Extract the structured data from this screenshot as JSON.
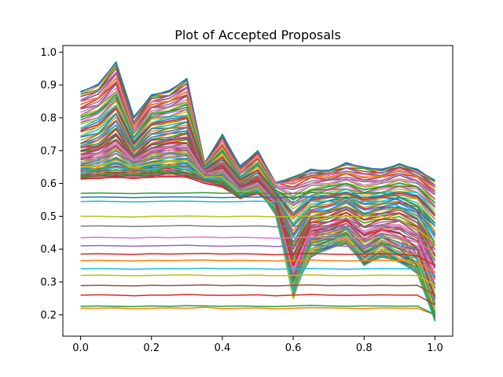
{
  "chart_data": {
    "type": "line",
    "title": "Plot of Accepted Proposals",
    "xlabel": "",
    "ylabel": "",
    "xlim": [
      -0.05,
      1.05
    ],
    "ylim": [
      0.135,
      1.02
    ],
    "x_ticks": [
      "0.0",
      "0.2",
      "0.4",
      "0.6",
      "0.8",
      "1.0"
    ],
    "y_ticks": [
      "0.2",
      "0.3",
      "0.4",
      "0.5",
      "0.6",
      "0.7",
      "0.8",
      "0.9",
      "1.0"
    ],
    "grid": false,
    "legend": "none",
    "x_sample": [
      0.0,
      0.05,
      0.1,
      0.15,
      0.2,
      0.25,
      0.3,
      0.35,
      0.4,
      0.45,
      0.5,
      0.55,
      0.6,
      0.65,
      0.7,
      0.75,
      0.8,
      0.85,
      0.9,
      0.95,
      1.0
    ],
    "series": [
      {
        "values": [
          0.22,
          0.22,
          0.221,
          0.218,
          0.22,
          0.221,
          0.22,
          0.223,
          0.219,
          0.22,
          0.221,
          0.218,
          0.22,
          0.222,
          0.221,
          0.22,
          0.219,
          0.221,
          0.22,
          0.22,
          0.2
        ],
        "color": "#ff7f0e"
      },
      {
        "values": [
          0.226,
          0.227,
          0.226,
          0.225,
          0.227,
          0.226,
          0.228,
          0.227,
          0.226,
          0.227,
          0.226,
          0.225,
          0.227,
          0.229,
          0.227,
          0.226,
          0.227,
          0.227,
          0.226,
          0.227,
          0.2
        ],
        "color": "#2ca02c"
      },
      {
        "values": [
          0.26,
          0.261,
          0.26,
          0.258,
          0.26,
          0.26,
          0.262,
          0.26,
          0.259,
          0.26,
          0.261,
          0.258,
          0.26,
          0.262,
          0.26,
          0.259,
          0.26,
          0.261,
          0.26,
          0.26,
          0.23
        ],
        "color": "#d62728"
      },
      {
        "values": [
          0.289,
          0.29,
          0.289,
          0.288,
          0.29,
          0.289,
          0.29,
          0.291,
          0.289,
          0.29,
          0.289,
          0.288,
          0.29,
          0.291,
          0.289,
          0.29,
          0.289,
          0.29,
          0.289,
          0.29,
          0.26
        ],
        "color": "#8c564b"
      },
      {
        "values": [
          0.32,
          0.321,
          0.32,
          0.319,
          0.32,
          0.321,
          0.322,
          0.32,
          0.319,
          0.32,
          0.321,
          0.319,
          0.32,
          0.322,
          0.32,
          0.319,
          0.32,
          0.321,
          0.32,
          0.32,
          0.29
        ],
        "color": "#bcbd22"
      },
      {
        "values": [
          0.34,
          0.341,
          0.34,
          0.339,
          0.34,
          0.341,
          0.34,
          0.342,
          0.34,
          0.341,
          0.34,
          0.339,
          0.34,
          0.341,
          0.34,
          0.339,
          0.34,
          0.341,
          0.34,
          0.34,
          0.32
        ],
        "color": "#17becf"
      },
      {
        "values": [
          0.365,
          0.366,
          0.365,
          0.364,
          0.366,
          0.365,
          0.366,
          0.367,
          0.365,
          0.366,
          0.365,
          0.364,
          0.366,
          0.367,
          0.365,
          0.364,
          0.365,
          0.366,
          0.365,
          0.36,
          0.33
        ],
        "color": "#ff7f0e"
      },
      {
        "values": [
          0.385,
          0.386,
          0.385,
          0.384,
          0.386,
          0.385,
          0.386,
          0.387,
          0.385,
          0.386,
          0.385,
          0.383,
          0.385,
          0.387,
          0.385,
          0.384,
          0.385,
          0.386,
          0.385,
          0.38,
          0.35
        ],
        "color": "#d62728"
      },
      {
        "values": [
          0.41,
          0.411,
          0.41,
          0.409,
          0.41,
          0.411,
          0.412,
          0.41,
          0.409,
          0.41,
          0.411,
          0.408,
          0.41,
          0.412,
          0.41,
          0.409,
          0.41,
          0.411,
          0.41,
          0.4,
          0.37
        ],
        "color": "#9467bd"
      },
      {
        "values": [
          0.435,
          0.436,
          0.435,
          0.434,
          0.436,
          0.435,
          0.436,
          0.437,
          0.435,
          0.436,
          0.435,
          0.433,
          0.435,
          0.437,
          0.435,
          0.434,
          0.435,
          0.436,
          0.435,
          0.42,
          0.39
        ],
        "color": "#e377c2"
      },
      {
        "values": [
          0.47,
          0.471,
          0.47,
          0.469,
          0.47,
          0.471,
          0.472,
          0.47,
          0.469,
          0.47,
          0.471,
          0.468,
          0.47,
          0.472,
          0.47,
          0.469,
          0.47,
          0.471,
          0.46,
          0.44,
          0.4
        ],
        "color": "#7f7f7f"
      },
      {
        "values": [
          0.5,
          0.5,
          0.499,
          0.498,
          0.5,
          0.5,
          0.501,
          0.5,
          0.499,
          0.5,
          0.5,
          0.498,
          0.5,
          0.501,
          0.5,
          0.499,
          0.5,
          0.5,
          0.49,
          0.46,
          0.42
        ],
        "color": "#bcbd22"
      },
      {
        "values": [
          0.545,
          0.546,
          0.545,
          0.544,
          0.545,
          0.546,
          0.546,
          0.545,
          0.544,
          0.545,
          0.546,
          0.544,
          0.545,
          0.546,
          0.545,
          0.544,
          0.545,
          0.546,
          0.53,
          0.5,
          0.45
        ],
        "color": "#17becf"
      },
      {
        "values": [
          0.558,
          0.559,
          0.558,
          0.557,
          0.558,
          0.559,
          0.559,
          0.558,
          0.557,
          0.558,
          0.559,
          0.557,
          0.558,
          0.559,
          0.558,
          0.557,
          0.558,
          0.558,
          0.55,
          0.52,
          0.47
        ],
        "color": "#1f77b4"
      },
      {
        "values": [
          0.57,
          0.571,
          0.57,
          0.569,
          0.571,
          0.57,
          0.571,
          0.572,
          0.57,
          0.571,
          0.57,
          0.568,
          0.57,
          0.572,
          0.57,
          0.569,
          0.57,
          0.571,
          0.56,
          0.53,
          0.48
        ],
        "color": "#2ca02c"
      }
    ],
    "band_series": [
      {
        "values": [
          0.88,
          0.9,
          0.97,
          0.8,
          0.87,
          0.88,
          0.92,
          0.66,
          0.75,
          0.65,
          0.7,
          0.6,
          0.62,
          0.64,
          0.64,
          0.66,
          0.65,
          0.64,
          0.66,
          0.64,
          0.61
        ],
        "color": "#1f77b4"
      },
      {
        "values": [
          0.84,
          0.86,
          0.92,
          0.77,
          0.84,
          0.85,
          0.88,
          0.66,
          0.72,
          0.64,
          0.68,
          0.6,
          0.6,
          0.62,
          0.62,
          0.63,
          0.62,
          0.62,
          0.64,
          0.62,
          0.58
        ],
        "color": "#ff7f0e"
      },
      {
        "values": [
          0.8,
          0.82,
          0.87,
          0.74,
          0.81,
          0.82,
          0.84,
          0.65,
          0.7,
          0.62,
          0.66,
          0.58,
          0.55,
          0.58,
          0.59,
          0.6,
          0.58,
          0.59,
          0.6,
          0.59,
          0.54
        ],
        "color": "#2ca02c"
      },
      {
        "values": [
          0.76,
          0.78,
          0.83,
          0.72,
          0.78,
          0.79,
          0.8,
          0.64,
          0.68,
          0.61,
          0.64,
          0.57,
          0.5,
          0.55,
          0.56,
          0.57,
          0.55,
          0.56,
          0.57,
          0.56,
          0.5
        ],
        "color": "#d62728"
      },
      {
        "values": [
          0.72,
          0.74,
          0.79,
          0.7,
          0.75,
          0.76,
          0.77,
          0.64,
          0.66,
          0.6,
          0.62,
          0.56,
          0.44,
          0.52,
          0.53,
          0.55,
          0.52,
          0.53,
          0.54,
          0.52,
          0.44
        ],
        "color": "#9467bd"
      },
      {
        "values": [
          0.7,
          0.71,
          0.75,
          0.68,
          0.72,
          0.73,
          0.74,
          0.63,
          0.65,
          0.59,
          0.61,
          0.55,
          0.38,
          0.49,
          0.5,
          0.52,
          0.49,
          0.5,
          0.51,
          0.48,
          0.38
        ],
        "color": "#8c564b"
      },
      {
        "values": [
          0.68,
          0.69,
          0.72,
          0.67,
          0.7,
          0.71,
          0.71,
          0.63,
          0.64,
          0.58,
          0.6,
          0.54,
          0.33,
          0.46,
          0.47,
          0.49,
          0.45,
          0.47,
          0.47,
          0.44,
          0.32
        ],
        "color": "#e377c2"
      },
      {
        "values": [
          0.66,
          0.67,
          0.7,
          0.66,
          0.68,
          0.69,
          0.69,
          0.62,
          0.63,
          0.58,
          0.59,
          0.53,
          0.28,
          0.43,
          0.44,
          0.46,
          0.41,
          0.44,
          0.42,
          0.4,
          0.26
        ],
        "color": "#7f7f7f"
      },
      {
        "values": [
          0.65,
          0.655,
          0.67,
          0.65,
          0.66,
          0.67,
          0.67,
          0.62,
          0.62,
          0.57,
          0.585,
          0.52,
          0.25,
          0.4,
          0.42,
          0.44,
          0.38,
          0.41,
          0.37,
          0.36,
          0.22
        ],
        "color": "#bcbd22"
      },
      {
        "values": [
          0.635,
          0.64,
          0.65,
          0.64,
          0.645,
          0.65,
          0.65,
          0.615,
          0.615,
          0.565,
          0.58,
          0.51,
          0.27,
          0.38,
          0.4,
          0.42,
          0.35,
          0.38,
          0.36,
          0.33,
          0.18
        ],
        "color": "#17becf"
      },
      {
        "values": [
          0.62,
          0.625,
          0.63,
          0.625,
          0.63,
          0.635,
          0.63,
          0.61,
          0.6,
          0.56,
          0.575,
          0.52,
          0.3,
          0.42,
          0.43,
          0.45,
          0.39,
          0.42,
          0.4,
          0.35,
          0.2
        ],
        "color": "#2ca02c"
      },
      {
        "values": [
          0.615,
          0.615,
          0.62,
          0.615,
          0.62,
          0.62,
          0.62,
          0.6,
          0.59,
          0.555,
          0.57,
          0.54,
          0.35,
          0.47,
          0.47,
          0.49,
          0.44,
          0.46,
          0.45,
          0.4,
          0.25
        ],
        "color": "#d62728"
      }
    ]
  }
}
